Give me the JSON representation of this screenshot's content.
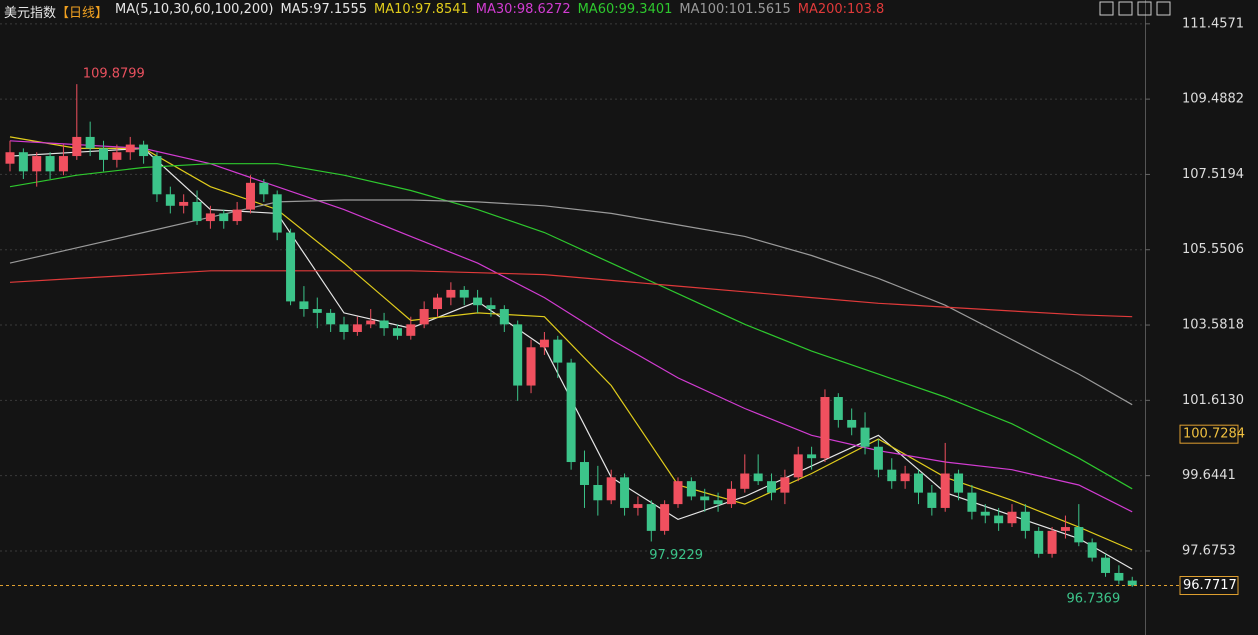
{
  "chart_data": {
    "type": "candlestick",
    "title": "美元指数",
    "period": "【日线】",
    "indicator": "MA(5,10,30,60,100,200)",
    "ylim": [
      95.87,
      112.08
    ],
    "yticks": [
      111.4571,
      109.4882,
      107.5194,
      105.5506,
      103.5818,
      {
        "value": 101.613,
        "label": "101.6130"
      },
      99.6441,
      97.6753
    ],
    "grid": true,
    "up_color": "#f0505f",
    "down_color": "#3cc48a",
    "reference_price": 100.7284,
    "open": [
      107.8,
      108.1,
      107.6,
      108.0,
      107.6,
      108.0,
      108.5,
      108.2,
      107.9,
      108.1,
      108.3,
      108.0,
      107.0,
      106.7,
      106.8,
      106.3,
      106.5,
      106.3,
      106.6,
      107.3,
      107.0,
      106.0,
      104.2,
      104.0,
      103.9,
      103.6,
      103.4,
      103.6,
      103.7,
      103.5,
      103.3,
      103.6,
      104.0,
      104.3,
      104.5,
      104.3,
      104.1,
      104.0,
      103.6,
      102.0,
      103.0,
      103.2,
      102.6,
      100.0,
      99.4,
      99.0,
      99.6,
      98.8,
      98.9,
      98.2,
      98.9,
      99.5,
      99.1,
      99.0,
      98.9,
      99.3,
      99.7,
      99.5,
      99.2,
      99.6,
      100.2,
      100.1,
      101.7,
      101.1,
      100.9,
      100.4,
      99.8,
      99.5,
      99.7,
      99.2,
      98.8,
      99.7,
      99.2,
      98.7,
      98.6,
      98.4,
      98.7,
      98.2,
      97.6,
      98.2,
      98.3,
      97.9,
      97.5,
      97.1,
      96.9
    ],
    "high": [
      108.4,
      108.2,
      108.1,
      108.1,
      108.3,
      109.8799,
      108.9,
      108.4,
      108.3,
      108.5,
      108.4,
      108.1,
      107.2,
      107.0,
      107.1,
      106.7,
      106.6,
      106.8,
      107.5,
      107.4,
      107.1,
      106.1,
      104.6,
      104.3,
      104.0,
      103.8,
      103.8,
      104.0,
      103.9,
      103.6,
      103.8,
      104.2,
      104.4,
      104.7,
      104.6,
      104.5,
      104.3,
      104.1,
      103.7,
      103.2,
      103.4,
      103.3,
      102.7,
      100.3,
      99.9,
      99.8,
      99.7,
      99.1,
      99.0,
      99.0,
      99.6,
      99.6,
      99.3,
      99.2,
      99.5,
      100.2,
      100.2,
      99.7,
      99.8,
      100.4,
      100.4,
      101.9,
      101.8,
      101.4,
      101.3,
      100.6,
      100.1,
      99.9,
      99.8,
      99.4,
      100.5,
      99.8,
      99.4,
      98.9,
      98.8,
      98.9,
      98.9,
      98.3,
      98.3,
      98.6,
      98.9,
      98.0,
      97.6,
      97.3,
      97.0
    ],
    "low": [
      107.6,
      107.4,
      107.2,
      107.4,
      107.5,
      107.9,
      108.0,
      107.6,
      107.7,
      107.9,
      107.8,
      106.8,
      106.5,
      106.5,
      106.2,
      106.1,
      106.1,
      106.2,
      106.5,
      106.8,
      105.8,
      104.1,
      103.8,
      103.5,
      103.4,
      103.2,
      103.3,
      103.5,
      103.3,
      103.2,
      103.2,
      103.5,
      103.8,
      104.1,
      104.1,
      103.9,
      103.8,
      103.4,
      101.6,
      101.8,
      102.8,
      102.2,
      99.8,
      98.8,
      98.6,
      98.9,
      98.6,
      98.6,
      97.9229,
      98.1,
      98.8,
      99.0,
      98.7,
      98.7,
      98.8,
      99.2,
      99.4,
      99.0,
      98.9,
      99.5,
      99.8,
      100.0,
      100.9,
      100.7,
      100.2,
      99.6,
      99.3,
      99.3,
      98.9,
      98.6,
      98.7,
      99.0,
      98.5,
      98.4,
      98.2,
      98.3,
      98.0,
      97.5,
      97.5,
      98.0,
      97.8,
      97.4,
      97.0,
      96.8,
      96.7369
    ],
    "close": [
      108.1,
      107.6,
      108.0,
      107.6,
      108.0,
      108.5,
      108.2,
      107.9,
      108.1,
      108.3,
      108.0,
      107.0,
      106.7,
      106.8,
      106.3,
      106.5,
      106.3,
      106.6,
      107.3,
      107.0,
      106.0,
      104.2,
      104.0,
      103.9,
      103.6,
      103.4,
      103.6,
      103.7,
      103.5,
      103.3,
      103.6,
      104.0,
      104.3,
      104.5,
      104.3,
      104.1,
      104.0,
      103.6,
      102.0,
      103.0,
      103.2,
      102.6,
      100.0,
      99.4,
      99.0,
      99.6,
      98.8,
      98.9,
      98.2,
      98.9,
      99.5,
      99.1,
      99.0,
      98.9,
      99.3,
      99.7,
      99.5,
      99.2,
      99.6,
      100.2,
      100.1,
      101.7,
      101.1,
      100.9,
      100.4,
      99.8,
      99.5,
      99.7,
      99.2,
      98.8,
      99.7,
      99.2,
      98.7,
      98.6,
      98.4,
      98.7,
      98.2,
      97.6,
      98.2,
      98.3,
      97.9,
      97.5,
      97.1,
      96.9,
      96.7717
    ],
    "ma_x": [
      0,
      5,
      10,
      15,
      20,
      25,
      30,
      35,
      40,
      45,
      50,
      55,
      60,
      65,
      70,
      75,
      80,
      84
    ],
    "ma_series": [
      {
        "name": "MA5:97.1555",
        "color": "#e6e6e6",
        "values": [
          108.0,
          108.1,
          108.2,
          106.6,
          106.5,
          103.9,
          103.5,
          104.2,
          103.0,
          99.6,
          98.5,
          99.1,
          99.9,
          100.7,
          99.2,
          98.6,
          98.0,
          97.2
        ]
      },
      {
        "name": "MA10:97.8541",
        "color": "#e0cc1c",
        "values": [
          108.5,
          108.2,
          108.2,
          107.2,
          106.6,
          105.2,
          103.7,
          103.9,
          103.8,
          102.0,
          99.4,
          98.9,
          99.7,
          100.6,
          99.6,
          99.0,
          98.3,
          97.7
        ]
      },
      {
        "name": "MA30:98.6272",
        "color": "#d23cd2",
        "values": [
          108.4,
          108.3,
          108.2,
          107.8,
          107.2,
          106.6,
          105.9,
          105.2,
          104.3,
          103.2,
          102.2,
          101.4,
          100.7,
          100.3,
          100.0,
          99.8,
          99.4,
          98.7
        ]
      },
      {
        "name": "MA60:99.3401",
        "color": "#2ec82e",
        "values": [
          107.2,
          107.5,
          107.7,
          107.8,
          107.8,
          107.5,
          107.1,
          106.6,
          106.0,
          105.2,
          104.4,
          103.6,
          102.9,
          102.3,
          101.7,
          101.0,
          100.1,
          99.3
        ]
      },
      {
        "name": "MA100:101.5615",
        "color": "#9a9a9a",
        "values": [
          105.2,
          105.6,
          106.0,
          106.4,
          106.8,
          106.85,
          106.85,
          106.8,
          106.7,
          106.5,
          106.2,
          105.9,
          105.4,
          104.8,
          104.1,
          103.2,
          102.3,
          101.5
        ]
      },
      {
        "name": "MA200:103.8",
        "color": "#e03a3a",
        "values": [
          104.7,
          104.8,
          104.9,
          105.0,
          105.0,
          105.0,
          105.0,
          104.95,
          104.9,
          104.75,
          104.6,
          104.45,
          104.3,
          104.15,
          104.05,
          103.95,
          103.85,
          103.8
        ]
      }
    ]
  }
}
